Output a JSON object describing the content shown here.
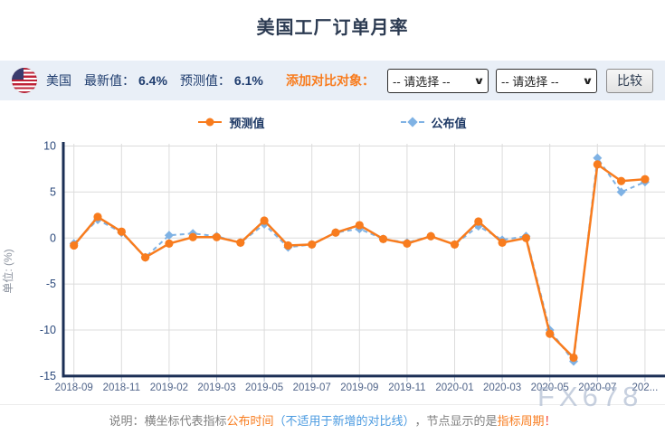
{
  "page": {
    "title": "美国工厂订单月率"
  },
  "info_bar": {
    "flag_icon": "us-flag",
    "country": "美国",
    "latest_label": "最新值：",
    "latest_value": "6.4%",
    "forecast_label": "预测值：",
    "forecast_value": "6.1%",
    "add_compare_label": "添加对比对象：",
    "select1_value": "-- 请选择 --",
    "select2_value": "-- 请选择 --",
    "compare_button": "比较"
  },
  "legend": [
    {
      "label": "公布值",
      "marker": "circle",
      "color": "#f87c1e"
    },
    {
      "label": "预测值",
      "marker": "diamond",
      "color": "#7fb2e4"
    }
  ],
  "chart_data": {
    "type": "line",
    "title": "美国工厂订单月率",
    "ylabel": "单位: (%)",
    "ylim": [
      -15,
      10
    ],
    "yticks": [
      10,
      5,
      0,
      -5,
      -10,
      -15
    ],
    "grid": true,
    "x_tick_labels": [
      "2018-09",
      "2018-11",
      "2019-02",
      "2019-03",
      "2019-05",
      "2019-07",
      "2019-09",
      "2019-11",
      "2020-01",
      "2020-03",
      "2020-05",
      "2020-07",
      "202..."
    ],
    "x_tick_indices": [
      0,
      2,
      4,
      6,
      8,
      10,
      12,
      14,
      16,
      18,
      20,
      22,
      24
    ],
    "series": [
      {
        "name": "预测值",
        "color": "#7fb2e4",
        "style": "dashed",
        "marker": "diamond",
        "values": [
          -0.6,
          2.0,
          0.6,
          -2.1,
          0.3,
          0.5,
          0.2,
          -0.5,
          1.5,
          -1.0,
          -0.7,
          0.6,
          1.0,
          -0.1,
          -0.5,
          0.2,
          -0.7,
          1.3,
          -0.2,
          0.2,
          -10.0,
          -13.4,
          8.7,
          5.0,
          6.1
        ]
      },
      {
        "name": "公布值",
        "color": "#f87c1e",
        "style": "solid",
        "marker": "circle",
        "values": [
          -0.8,
          2.3,
          0.7,
          -2.1,
          -0.6,
          0.1,
          0.1,
          -0.5,
          1.9,
          -0.8,
          -0.7,
          0.6,
          1.4,
          -0.1,
          -0.6,
          0.2,
          -0.7,
          1.8,
          -0.5,
          0.0,
          -10.4,
          -13.0,
          8.0,
          6.2,
          6.4
        ]
      }
    ],
    "watermark": "FX678"
  },
  "note": {
    "seg1": "说明：横坐标代表指标",
    "seg2": "公布时间",
    "seg3": "（不适用于新增的对比线）",
    "seg4": "，节点显示的是",
    "seg5": "指标周期",
    "seg6": "！"
  },
  "colors": {
    "accent_orange": "#f87c1e",
    "series_blue": "#7fb2e4",
    "axis_navy": "#1b2f55",
    "grid_gray": "#dcdcdc",
    "info_bar_bg": "#e9eff7",
    "text_navy": "#1e3c6e"
  }
}
